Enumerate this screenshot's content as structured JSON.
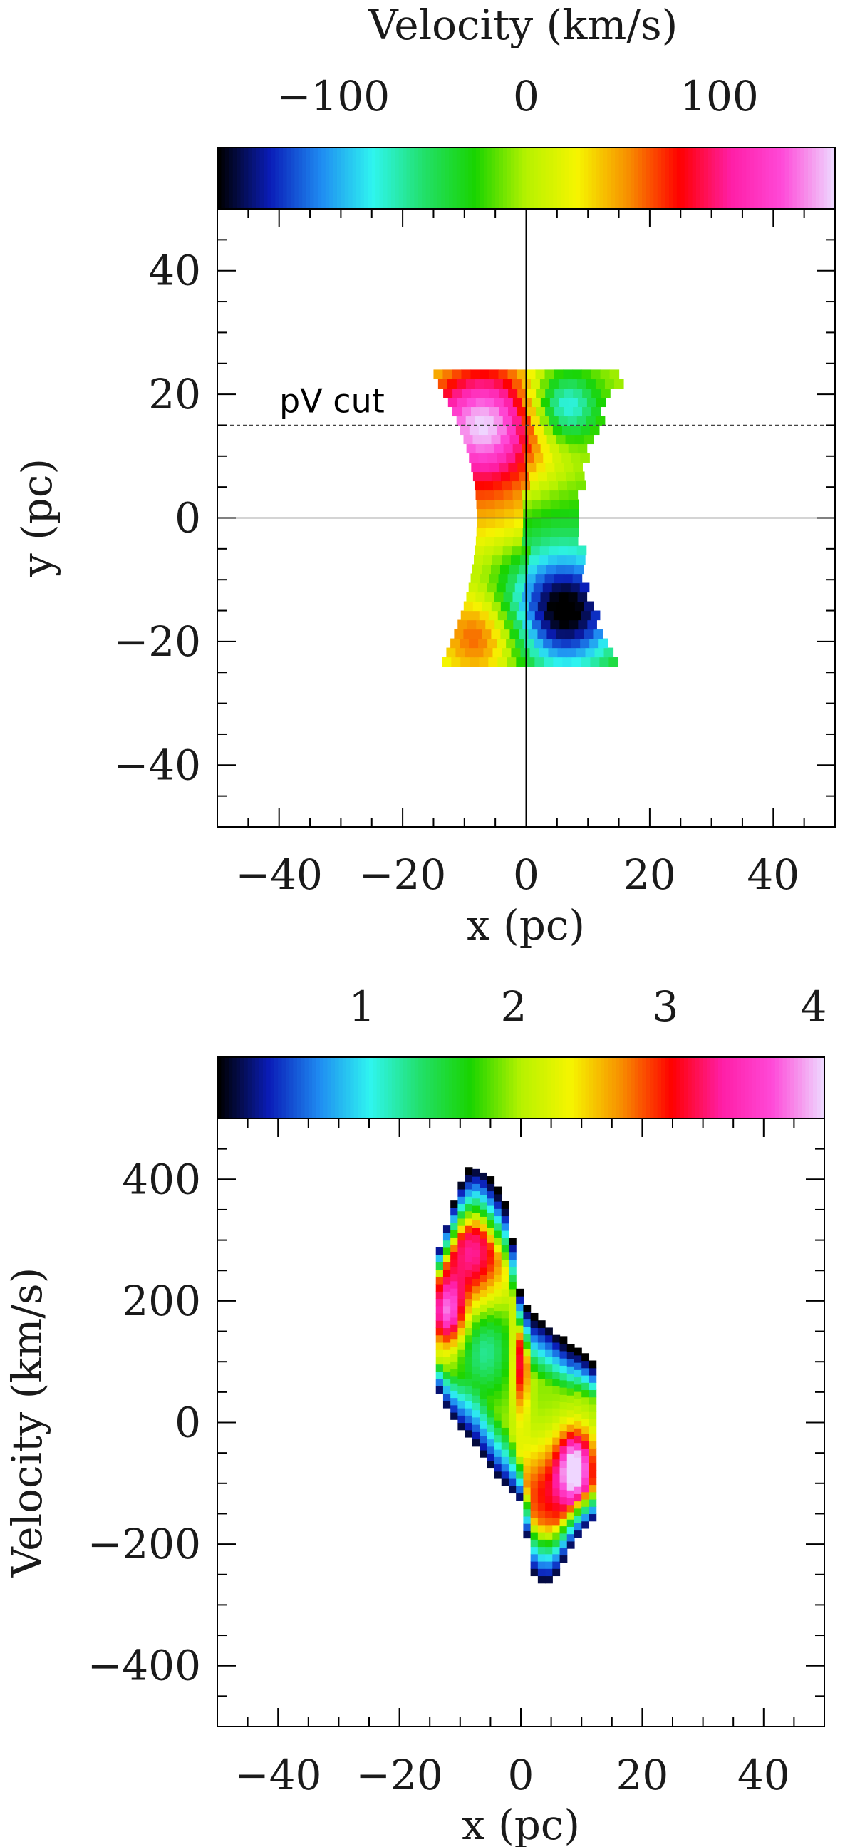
{
  "chart_data": [
    {
      "type": "heatmap",
      "panel": "velocity-map",
      "title": "",
      "colorbar": {
        "label": "Velocity (km/s)",
        "range": [
          -160,
          160
        ],
        "tick_values": [
          -100,
          0,
          100
        ],
        "tick_labels": [
          "−100",
          "0",
          "100"
        ],
        "colormap": [
          "#000000",
          "#0a1db8",
          "#1f8cf2",
          "#2ff5f0",
          "#22e06a",
          "#19d400",
          "#b6f200",
          "#f6f500",
          "#f78e00",
          "#ff0000",
          "#ff1ea6",
          "#ff49d8",
          "#efd6ff"
        ]
      },
      "xlabel": "x (pc)",
      "ylabel": "y (pc)",
      "xlim": [
        -50,
        50
      ],
      "ylim": [
        -50,
        50
      ],
      "x_ticks": [
        -40,
        -20,
        0,
        20,
        40
      ],
      "x_tick_labels": [
        "−40",
        "−20",
        "0",
        "20",
        "40"
      ],
      "y_ticks": [
        -40,
        -20,
        0,
        20,
        40
      ],
      "y_tick_labels": [
        "−40",
        "−20",
        "0",
        "20",
        "40"
      ],
      "annotation": {
        "text": "pV cut",
        "y": 15
      },
      "lines": {
        "cut_y": 15,
        "zero_x": 0,
        "zero_y": 0
      },
      "region": {
        "y_top": 23,
        "y_bottom": -24,
        "x_half_width_top": 15,
        "x_half_width_mid": 8,
        "x_half_width_bottom": 14
      },
      "components": [
        {
          "x": -7,
          "y": 15,
          "value": 160,
          "sigma": 7
        },
        {
          "x": -7,
          "y": -19,
          "value": 80,
          "sigma": 5
        },
        {
          "x": 6,
          "y": -15,
          "value": -170,
          "sigma": 7
        },
        {
          "x": 6,
          "y": 18,
          "value": -100,
          "sigma": 4
        }
      ]
    },
    {
      "type": "heatmap",
      "panel": "position-velocity-diagram",
      "title": "",
      "colorbar": {
        "label": "",
        "range": [
          0,
          4
        ],
        "tick_values": [
          1,
          2,
          3,
          4
        ],
        "tick_labels": [
          "1",
          "2",
          "3",
          "4"
        ],
        "colormap": [
          "#000000",
          "#0a1db8",
          "#1f8cf2",
          "#2ff5f0",
          "#22e06a",
          "#19d400",
          "#b6f200",
          "#f6f500",
          "#f78e00",
          "#ff0000",
          "#ff1ea6",
          "#ff49d8",
          "#efd6ff"
        ]
      },
      "xlabel": "x (pc)",
      "ylabel": "Velocity (km/s)",
      "xlim": [
        -50,
        50
      ],
      "ylim": [
        -500,
        500
      ],
      "x_ticks": [
        -40,
        -20,
        0,
        20,
        40
      ],
      "x_tick_labels": [
        "−40",
        "−20",
        "0",
        "20",
        "40"
      ],
      "y_ticks": [
        -400,
        -200,
        0,
        200,
        400
      ],
      "y_tick_labels": [
        "−400",
        "−200",
        "0",
        "200",
        "400"
      ],
      "ridge": {
        "x": [
          -14,
          -12,
          -10,
          -8,
          -6,
          -4,
          -2,
          0,
          2,
          4,
          6,
          8,
          10,
          12
        ],
        "v_lower": [
          60,
          20,
          -10,
          -30,
          -60,
          -90,
          -110,
          -130,
          -250,
          -270,
          -250,
          -210,
          -180,
          -160
        ],
        "v_upper": [
          270,
          330,
          390,
          420,
          410,
          380,
          340,
          200,
          170,
          160,
          140,
          120,
          110,
          90
        ]
      },
      "components": [
        {
          "x": -8,
          "v": 280,
          "value": 3.3,
          "sx": 4,
          "sv": 60
        },
        {
          "x": -12,
          "v": 180,
          "value": 3.6,
          "sx": 2,
          "sv": 40
        },
        {
          "x": -6,
          "v": 120,
          "value": 1.2,
          "sx": 3,
          "sv": 50
        },
        {
          "x": 5,
          "v": -120,
          "value": 3.0,
          "sx": 5,
          "sv": 60
        },
        {
          "x": 9,
          "v": -70,
          "value": 3.8,
          "sx": 2,
          "sv": 40
        },
        {
          "x": 0,
          "v": 100,
          "value": 3.2,
          "sx": 1,
          "sv": 60
        }
      ]
    }
  ]
}
